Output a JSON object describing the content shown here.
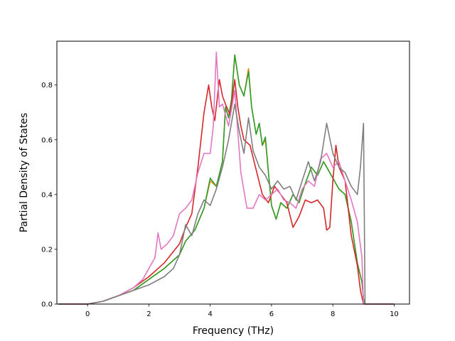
{
  "chart_data": {
    "type": "line",
    "xlabel": "Frequency (THz)",
    "ylabel": "Partial Density of States",
    "xlim": [
      -1.0,
      10.5
    ],
    "ylim": [
      0.0,
      0.96
    ],
    "xticks": [
      0,
      2,
      4,
      6,
      8,
      10
    ],
    "yticks": [
      0.0,
      0.2,
      0.4,
      0.6,
      0.8
    ],
    "ytick_labels": [
      "0.0",
      "0.2",
      "0.4",
      "0.6",
      "0.8"
    ],
    "grid": false,
    "legend": "none",
    "series": [
      {
        "color": "#ff7f0e",
        "points": [
          [
            -0.95,
            0.0
          ],
          [
            0.0,
            0.0
          ],
          [
            0.5,
            0.01
          ],
          [
            1.0,
            0.03
          ],
          [
            1.5,
            0.05
          ],
          [
            2.0,
            0.09
          ],
          [
            2.5,
            0.13
          ],
          [
            3.0,
            0.18
          ],
          [
            3.2,
            0.23
          ],
          [
            3.5,
            0.27
          ],
          [
            3.8,
            0.35
          ],
          [
            4.0,
            0.45
          ],
          [
            4.2,
            0.43
          ],
          [
            4.4,
            0.52
          ],
          [
            4.5,
            0.72
          ],
          [
            4.6,
            0.68
          ],
          [
            4.7,
            0.75
          ],
          [
            4.8,
            0.91
          ],
          [
            4.95,
            0.8
          ],
          [
            5.1,
            0.76
          ],
          [
            5.25,
            0.86
          ],
          [
            5.35,
            0.72
          ],
          [
            5.5,
            0.62
          ],
          [
            5.6,
            0.66
          ],
          [
            5.7,
            0.58
          ],
          [
            5.8,
            0.6
          ],
          [
            5.9,
            0.48
          ],
          [
            6.0,
            0.36
          ],
          [
            6.15,
            0.31
          ],
          [
            6.3,
            0.37
          ],
          [
            6.5,
            0.35
          ],
          [
            6.7,
            0.4
          ],
          [
            6.9,
            0.37
          ],
          [
            7.1,
            0.44
          ],
          [
            7.3,
            0.5
          ],
          [
            7.5,
            0.47
          ],
          [
            7.7,
            0.52
          ],
          [
            7.8,
            0.5
          ],
          [
            8.0,
            0.46
          ],
          [
            8.2,
            0.42
          ],
          [
            8.4,
            0.4
          ],
          [
            8.6,
            0.3
          ],
          [
            8.8,
            0.15
          ],
          [
            8.95,
            0.08
          ],
          [
            9.0,
            0.02
          ],
          [
            9.05,
            0.0
          ],
          [
            10.0,
            0.0
          ]
        ]
      },
      {
        "color": "#2ca02c",
        "points": [
          [
            -0.95,
            0.0
          ],
          [
            0.0,
            0.0
          ],
          [
            0.5,
            0.01
          ],
          [
            1.0,
            0.03
          ],
          [
            1.5,
            0.05
          ],
          [
            2.0,
            0.09
          ],
          [
            2.5,
            0.13
          ],
          [
            3.0,
            0.18
          ],
          [
            3.2,
            0.23
          ],
          [
            3.5,
            0.27
          ],
          [
            3.8,
            0.35
          ],
          [
            4.0,
            0.46
          ],
          [
            4.2,
            0.43
          ],
          [
            4.4,
            0.52
          ],
          [
            4.5,
            0.72
          ],
          [
            4.6,
            0.68
          ],
          [
            4.7,
            0.75
          ],
          [
            4.8,
            0.91
          ],
          [
            4.95,
            0.8
          ],
          [
            5.1,
            0.76
          ],
          [
            5.25,
            0.85
          ],
          [
            5.35,
            0.72
          ],
          [
            5.5,
            0.62
          ],
          [
            5.6,
            0.66
          ],
          [
            5.7,
            0.58
          ],
          [
            5.8,
            0.61
          ],
          [
            5.9,
            0.48
          ],
          [
            6.0,
            0.36
          ],
          [
            6.15,
            0.31
          ],
          [
            6.3,
            0.37
          ],
          [
            6.5,
            0.35
          ],
          [
            6.7,
            0.4
          ],
          [
            6.9,
            0.37
          ],
          [
            7.1,
            0.44
          ],
          [
            7.3,
            0.5
          ],
          [
            7.5,
            0.47
          ],
          [
            7.7,
            0.52
          ],
          [
            7.8,
            0.5
          ],
          [
            8.0,
            0.46
          ],
          [
            8.2,
            0.42
          ],
          [
            8.4,
            0.4
          ],
          [
            8.6,
            0.3
          ],
          [
            8.8,
            0.15
          ],
          [
            8.95,
            0.08
          ],
          [
            9.0,
            0.02
          ],
          [
            9.05,
            0.0
          ],
          [
            10.0,
            0.0
          ]
        ]
      },
      {
        "color": "#d62728",
        "points": [
          [
            -0.95,
            0.0
          ],
          [
            0.0,
            0.0
          ],
          [
            0.5,
            0.01
          ],
          [
            1.0,
            0.03
          ],
          [
            1.5,
            0.06
          ],
          [
            2.0,
            0.1
          ],
          [
            2.5,
            0.15
          ],
          [
            3.0,
            0.22
          ],
          [
            3.2,
            0.28
          ],
          [
            3.4,
            0.33
          ],
          [
            3.6,
            0.5
          ],
          [
            3.8,
            0.7
          ],
          [
            3.95,
            0.8
          ],
          [
            4.05,
            0.72
          ],
          [
            4.15,
            0.67
          ],
          [
            4.3,
            0.82
          ],
          [
            4.4,
            0.76
          ],
          [
            4.5,
            0.73
          ],
          [
            4.65,
            0.69
          ],
          [
            4.8,
            0.82
          ],
          [
            4.9,
            0.72
          ],
          [
            5.0,
            0.65
          ],
          [
            5.1,
            0.6
          ],
          [
            5.3,
            0.58
          ],
          [
            5.5,
            0.49
          ],
          [
            5.7,
            0.4
          ],
          [
            5.9,
            0.37
          ],
          [
            6.1,
            0.43
          ],
          [
            6.3,
            0.4
          ],
          [
            6.5,
            0.37
          ],
          [
            6.7,
            0.28
          ],
          [
            6.9,
            0.32
          ],
          [
            7.1,
            0.38
          ],
          [
            7.3,
            0.37
          ],
          [
            7.5,
            0.38
          ],
          [
            7.7,
            0.35
          ],
          [
            7.8,
            0.27
          ],
          [
            7.9,
            0.28
          ],
          [
            8.0,
            0.45
          ],
          [
            8.1,
            0.58
          ],
          [
            8.2,
            0.5
          ],
          [
            8.4,
            0.45
          ],
          [
            8.6,
            0.25
          ],
          [
            8.8,
            0.14
          ],
          [
            8.9,
            0.05
          ],
          [
            9.0,
            0.0
          ],
          [
            10.0,
            0.0
          ]
        ]
      },
      {
        "color": "#e377c2",
        "points": [
          [
            -0.95,
            0.0
          ],
          [
            0.0,
            0.0
          ],
          [
            0.5,
            0.01
          ],
          [
            1.0,
            0.03
          ],
          [
            1.5,
            0.06
          ],
          [
            1.8,
            0.09
          ],
          [
            2.0,
            0.13
          ],
          [
            2.2,
            0.17
          ],
          [
            2.3,
            0.26
          ],
          [
            2.4,
            0.2
          ],
          [
            2.6,
            0.22
          ],
          [
            2.8,
            0.25
          ],
          [
            3.0,
            0.33
          ],
          [
            3.2,
            0.35
          ],
          [
            3.4,
            0.38
          ],
          [
            3.6,
            0.48
          ],
          [
            3.8,
            0.55
          ],
          [
            4.0,
            0.55
          ],
          [
            4.1,
            0.65
          ],
          [
            4.2,
            0.92
          ],
          [
            4.3,
            0.72
          ],
          [
            4.4,
            0.73
          ],
          [
            4.6,
            0.65
          ],
          [
            4.8,
            0.78
          ],
          [
            5.0,
            0.48
          ],
          [
            5.2,
            0.35
          ],
          [
            5.4,
            0.35
          ],
          [
            5.6,
            0.4
          ],
          [
            5.8,
            0.38
          ],
          [
            6.0,
            0.4
          ],
          [
            6.2,
            0.42
          ],
          [
            6.4,
            0.38
          ],
          [
            6.6,
            0.37
          ],
          [
            6.8,
            0.35
          ],
          [
            7.0,
            0.42
          ],
          [
            7.2,
            0.45
          ],
          [
            7.4,
            0.43
          ],
          [
            7.6,
            0.53
          ],
          [
            7.8,
            0.55
          ],
          [
            8.0,
            0.5
          ],
          [
            8.2,
            0.52
          ],
          [
            8.4,
            0.45
          ],
          [
            8.6,
            0.38
          ],
          [
            8.8,
            0.3
          ],
          [
            8.95,
            0.17
          ],
          [
            9.0,
            0.0
          ],
          [
            10.0,
            0.0
          ]
        ]
      },
      {
        "color": "#7f7f7f",
        "points": [
          [
            -0.95,
            0.0
          ],
          [
            0.0,
            0.0
          ],
          [
            0.5,
            0.01
          ],
          [
            1.0,
            0.03
          ],
          [
            1.5,
            0.05
          ],
          [
            2.0,
            0.07
          ],
          [
            2.5,
            0.1
          ],
          [
            2.8,
            0.13
          ],
          [
            3.0,
            0.18
          ],
          [
            3.2,
            0.29
          ],
          [
            3.4,
            0.25
          ],
          [
            3.6,
            0.33
          ],
          [
            3.8,
            0.38
          ],
          [
            4.0,
            0.36
          ],
          [
            4.2,
            0.42
          ],
          [
            4.4,
            0.5
          ],
          [
            4.6,
            0.6
          ],
          [
            4.8,
            0.73
          ],
          [
            4.95,
            0.63
          ],
          [
            5.1,
            0.55
          ],
          [
            5.25,
            0.68
          ],
          [
            5.4,
            0.56
          ],
          [
            5.6,
            0.5
          ],
          [
            5.8,
            0.47
          ],
          [
            6.0,
            0.42
          ],
          [
            6.2,
            0.45
          ],
          [
            6.4,
            0.42
          ],
          [
            6.6,
            0.43
          ],
          [
            6.8,
            0.38
          ],
          [
            7.0,
            0.45
          ],
          [
            7.2,
            0.52
          ],
          [
            7.4,
            0.45
          ],
          [
            7.6,
            0.52
          ],
          [
            7.8,
            0.66
          ],
          [
            8.0,
            0.55
          ],
          [
            8.2,
            0.5
          ],
          [
            8.4,
            0.48
          ],
          [
            8.6,
            0.43
          ],
          [
            8.8,
            0.4
          ],
          [
            8.9,
            0.5
          ],
          [
            9.0,
            0.66
          ],
          [
            9.05,
            0.0
          ],
          [
            10.0,
            0.0
          ]
        ]
      }
    ]
  }
}
